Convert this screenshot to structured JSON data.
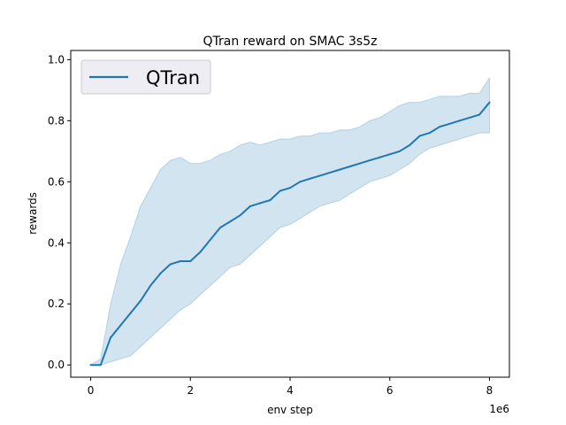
{
  "chart_data": {
    "type": "line",
    "title": "QTran reward on SMAC 3s5z",
    "xlabel": "env step",
    "ylabel": "rewards",
    "x_offset_label": "1e6",
    "xlim": [
      -0.4,
      8.4
    ],
    "ylim": [
      -0.04,
      1.03
    ],
    "x_ticks": [
      0,
      2,
      4,
      6,
      8
    ],
    "x_tick_labels": [
      "0",
      "2",
      "4",
      "6",
      "8"
    ],
    "y_ticks": [
      0.0,
      0.2,
      0.4,
      0.6,
      0.8,
      1.0
    ],
    "y_tick_labels": [
      "0.0",
      "0.2",
      "0.4",
      "0.6",
      "0.8",
      "1.0"
    ],
    "grid": false,
    "legend_position": "top-left",
    "x": [
      0.0,
      0.2,
      0.4,
      0.6,
      0.8,
      1.0,
      1.2,
      1.4,
      1.6,
      1.8,
      2.0,
      2.2,
      2.4,
      2.6,
      2.8,
      3.0,
      3.2,
      3.4,
      3.6,
      3.8,
      4.0,
      4.2,
      4.4,
      4.6,
      4.8,
      5.0,
      5.2,
      5.4,
      5.6,
      5.8,
      6.0,
      6.2,
      6.4,
      6.6,
      6.8,
      7.0,
      7.2,
      7.4,
      7.6,
      7.8,
      8.0
    ],
    "series": [
      {
        "name": "QTran",
        "color": "#1f77b4",
        "band_color": "#1f77b4",
        "values": [
          0.0,
          0.0,
          0.09,
          0.13,
          0.17,
          0.21,
          0.26,
          0.3,
          0.33,
          0.34,
          0.34,
          0.37,
          0.41,
          0.45,
          0.47,
          0.49,
          0.52,
          0.53,
          0.54,
          0.57,
          0.58,
          0.6,
          0.61,
          0.62,
          0.63,
          0.64,
          0.65,
          0.66,
          0.67,
          0.68,
          0.69,
          0.7,
          0.72,
          0.75,
          0.76,
          0.78,
          0.79,
          0.8,
          0.81,
          0.82,
          0.86
        ],
        "lower": [
          0.0,
          0.0,
          0.01,
          0.02,
          0.03,
          0.06,
          0.09,
          0.12,
          0.15,
          0.18,
          0.2,
          0.23,
          0.26,
          0.29,
          0.32,
          0.33,
          0.36,
          0.39,
          0.42,
          0.45,
          0.46,
          0.48,
          0.5,
          0.52,
          0.53,
          0.54,
          0.56,
          0.58,
          0.6,
          0.61,
          0.62,
          0.64,
          0.66,
          0.69,
          0.71,
          0.72,
          0.73,
          0.74,
          0.75,
          0.76,
          0.76
        ],
        "upper": [
          0.0,
          0.02,
          0.2,
          0.33,
          0.42,
          0.52,
          0.58,
          0.64,
          0.67,
          0.68,
          0.66,
          0.66,
          0.67,
          0.69,
          0.7,
          0.72,
          0.73,
          0.72,
          0.73,
          0.74,
          0.74,
          0.75,
          0.75,
          0.76,
          0.76,
          0.77,
          0.77,
          0.78,
          0.8,
          0.81,
          0.83,
          0.85,
          0.86,
          0.86,
          0.87,
          0.88,
          0.88,
          0.88,
          0.89,
          0.89,
          0.94
        ]
      }
    ]
  }
}
